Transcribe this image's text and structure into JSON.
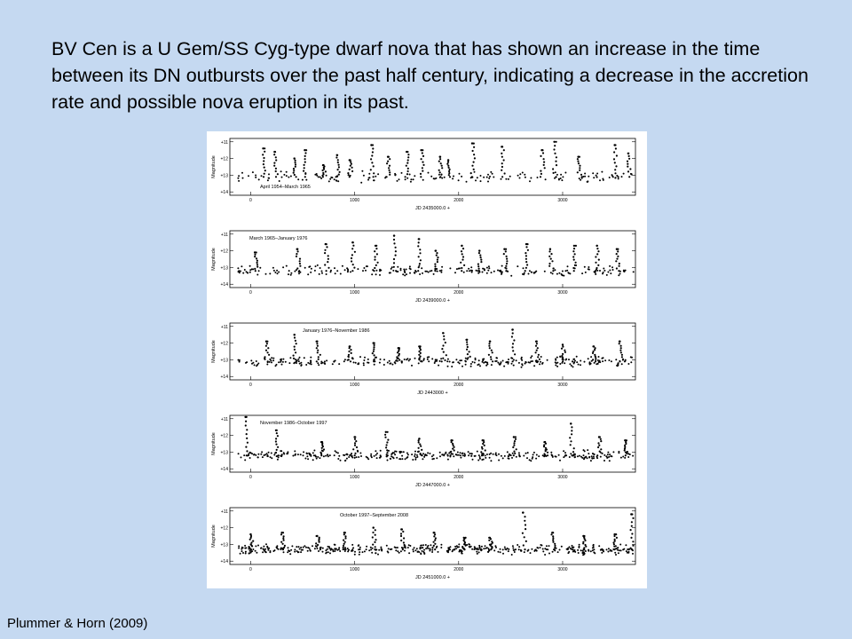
{
  "slide": {
    "text": "BV Cen is a U Gem/SS Cyg-type dwarf nova that has shown an increase in the time between its DN outbursts over the past half century, indicating a decrease in the accretion rate and possible nova eruption in its past.",
    "credit": "Plummer & Horn (2009)"
  },
  "colors": {
    "background": "#c5d9f1",
    "figure": "#ffffff",
    "points": "#000000"
  },
  "chart_data": [
    {
      "type": "scatter",
      "annotation": "April 1954–March 1965",
      "xlabel": "JD 2435000.0 +",
      "ylabel": "Magnitude",
      "xlim": [
        -200,
        3700
      ],
      "ylim": [
        14.2,
        10.8
      ],
      "xticks": [
        0,
        1000,
        2000,
        3000
      ],
      "yticks": [
        "+11",
        "+12",
        "+13",
        "+14"
      ],
      "quiescent_mag": 13.1,
      "grid": false,
      "outbursts_x": [
        120,
        230,
        420,
        520,
        700,
        830,
        950,
        1160,
        1320,
        1500,
        1640,
        1820,
        1900,
        2130,
        2420,
        2800,
        2920,
        3150,
        3500,
        3630
      ],
      "outbursts_peak": [
        11.4,
        11.6,
        12.0,
        11.5,
        12.4,
        11.8,
        12.1,
        11.2,
        11.9,
        11.6,
        11.5,
        11.9,
        12.1,
        11.1,
        11.3,
        11.5,
        11.0,
        11.9,
        11.2,
        11.7
      ]
    },
    {
      "type": "scatter",
      "annotation": "March 1965–January 1976",
      "xlabel": "JD 2439000.0 +",
      "ylabel": "Magnitude",
      "xlim": [
        -200,
        3700
      ],
      "ylim": [
        14.2,
        10.8
      ],
      "xticks": [
        0,
        1000,
        2000,
        3000
      ],
      "yticks": [
        "+11",
        "+12",
        "+13",
        "+14"
      ],
      "quiescent_mag": 13.2,
      "grid": false,
      "outbursts_x": [
        40,
        450,
        720,
        980,
        1200,
        1380,
        1620,
        1780,
        2030,
        2200,
        2440,
        2650,
        2880,
        3110,
        3330,
        3520
      ],
      "outbursts_peak": [
        12.1,
        11.9,
        11.6,
        11.5,
        11.7,
        11.1,
        11.3,
        12.0,
        11.7,
        12.0,
        11.9,
        11.6,
        11.9,
        11.7,
        11.7,
        11.9
      ]
    },
    {
      "type": "scatter",
      "annotation": "January 1976–November 1986",
      "xlabel": "JD 2443000 +",
      "ylabel": "Magnitude",
      "xlim": [
        -200,
        3700
      ],
      "ylim": [
        14.2,
        10.8
      ],
      "xticks": [
        0,
        1000,
        2000,
        3000
      ],
      "yticks": [
        "+11",
        "+12",
        "+13",
        "+14"
      ],
      "quiescent_mag": 13.1,
      "grid": false,
      "outbursts_x": [
        150,
        420,
        640,
        950,
        1180,
        1420,
        1620,
        1850,
        2080,
        2300,
        2520,
        2750,
        3000,
        3300,
        3550
      ],
      "outbursts_peak": [
        11.9,
        11.5,
        11.9,
        12.2,
        12.0,
        12.3,
        12.2,
        11.4,
        11.8,
        11.9,
        11.2,
        11.9,
        12.1,
        12.2,
        11.9
      ]
    },
    {
      "type": "scatter",
      "annotation": "November 1986–October 1997",
      "xlabel": "JD 2447000.0 +",
      "ylabel": "Magnitude",
      "xlim": [
        -200,
        3700
      ],
      "ylim": [
        14.2,
        10.8
      ],
      "xticks": [
        0,
        1000,
        2000,
        3000
      ],
      "yticks": [
        "+11",
        "+12",
        "+13",
        "+14"
      ],
      "quiescent_mag": 13.2,
      "grid": false,
      "outbursts_x": [
        -50,
        250,
        680,
        1000,
        1300,
        1620,
        1930,
        2230,
        2530,
        2830,
        3080,
        3350,
        3600
      ],
      "outbursts_peak": [
        10.9,
        11.7,
        12.4,
        12.1,
        11.8,
        12.2,
        12.3,
        12.3,
        12.1,
        12.4,
        11.3,
        12.1,
        12.3
      ]
    },
    {
      "type": "scatter",
      "annotation": "October 1997–September 2008",
      "xlabel": "JD 2451000.0 +",
      "ylabel": "Magnitude",
      "xlim": [
        -200,
        3700
      ],
      "ylim": [
        14.2,
        10.8
      ],
      "xticks": [
        0,
        1000,
        2000,
        3000
      ],
      "yticks": [
        "+11",
        "+12",
        "+13",
        "+14"
      ],
      "quiescent_mag": 13.3,
      "grid": false,
      "outbursts_x": [
        0,
        300,
        640,
        900,
        1180,
        1450,
        1760,
        2050,
        2300,
        2620,
        2900,
        3200,
        3500,
        3660
      ],
      "outbursts_peak": [
        12.4,
        12.3,
        12.5,
        12.3,
        12.0,
        12.1,
        12.3,
        12.6,
        12.6,
        11.1,
        12.3,
        12.5,
        12.4,
        11.2
      ]
    }
  ]
}
